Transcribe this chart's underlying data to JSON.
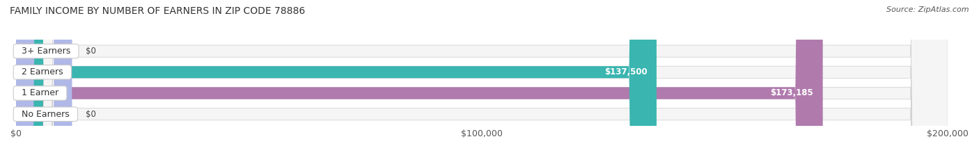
{
  "title": "FAMILY INCOME BY NUMBER OF EARNERS IN ZIP CODE 78886",
  "source": "Source: ZipAtlas.com",
  "categories": [
    "No Earners",
    "1 Earner",
    "2 Earners",
    "3+ Earners"
  ],
  "values": [
    0,
    173185,
    137500,
    0
  ],
  "value_labels": [
    "$0",
    "$173,185",
    "$137,500",
    "$0"
  ],
  "bar_colors": [
    "#a8b8d8",
    "#b07aad",
    "#3ab5b0",
    "#b0b8e8"
  ],
  "bar_bg_color": "#f0f0f0",
  "xlim": [
    0,
    200000
  ],
  "xticks": [
    0,
    100000,
    200000
  ],
  "xtick_labels": [
    "$0",
    "$100,000",
    "$200,000"
  ],
  "figsize": [
    14.06,
    2.33
  ],
  "dpi": 100,
  "title_fontsize": 10,
  "title_color": "#333333",
  "label_fontsize": 9,
  "value_fontsize": 8.5,
  "source_fontsize": 8,
  "source_color": "#555555",
  "bar_height": 0.55,
  "background_color": "#ffffff"
}
